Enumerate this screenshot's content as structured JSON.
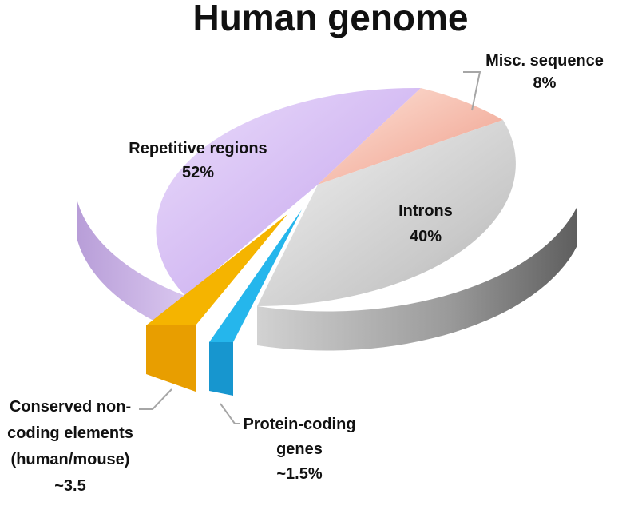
{
  "chart_data": {
    "type": "pie",
    "title": "Human genome",
    "three_d": true,
    "legend": "none",
    "slices": [
      {
        "name_lines": [
          "Misc. sequence"
        ],
        "value_text": "8%",
        "value": 8,
        "color": "#f2a08f"
      },
      {
        "name_lines": [
          "Introns"
        ],
        "value_text": "40%",
        "value": 40,
        "color": "#c2c2c2"
      },
      {
        "name_lines": [
          "Protein-coding",
          "genes"
        ],
        "value_text": "~1.5%",
        "value": 1.5,
        "color": "#1eaee6",
        "exploded": true
      },
      {
        "name_lines": [
          "Conserved non-",
          "coding elements",
          "(human/mouse)"
        ],
        "value_text": "~3.5",
        "value": 3.5,
        "color": "#f0ad00",
        "exploded": true
      },
      {
        "name_lines": [
          "Repetitive regions"
        ],
        "value_text": "52%",
        "value": 52,
        "color": "#cdb4f0"
      }
    ]
  }
}
